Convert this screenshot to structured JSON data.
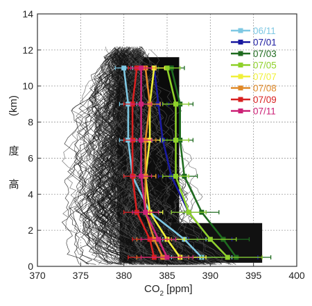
{
  "chart_data": {
    "type": "line",
    "title": "",
    "xlabel": "CO2 [ppm]",
    "xlabel_main": "CO",
    "xlabel_sub": "2",
    "xlabel_unit": "[ppm]",
    "ylabel_chars": [
      "高",
      "度"
    ],
    "ylabel_unit": "(km)",
    "xlim": [
      370,
      400
    ],
    "ylim": [
      0,
      14
    ],
    "xticks": [
      370,
      375,
      380,
      385,
      390,
      395,
      400
    ],
    "yticks": [
      0,
      2,
      4,
      6,
      8,
      10,
      12,
      14
    ],
    "grid": true,
    "legend_position": "top-right",
    "background_note": "dense black individual aircraft profiles",
    "levels_km": [
      0.5,
      1.5,
      3,
      5,
      7,
      9,
      11
    ],
    "series": [
      {
        "name": "06/11",
        "color": "#7ec8e3",
        "values": [
          389.0,
          387.0,
          383.0,
          381.0,
          380.5,
          380.5,
          380.0
        ],
        "error": [
          3.5,
          2.5,
          1.5,
          1.0,
          1.0,
          1.0,
          1.0
        ]
      },
      {
        "name": "07/01",
        "color": "#1a1aa0",
        "values": [
          392.0,
          390.0,
          387.5,
          385.5,
          384.5,
          384.0,
          383.5
        ],
        "error": [
          3.5,
          2.5,
          2.0,
          1.5,
          1.2,
          1.2,
          1.2
        ]
      },
      {
        "name": "07/03",
        "color": "#1f6b1f",
        "values": [
          393.0,
          391.5,
          389.0,
          387.0,
          386.5,
          386.5,
          385.5
        ],
        "error": [
          4.0,
          3.0,
          2.0,
          1.5,
          1.5,
          1.5,
          1.5
        ]
      },
      {
        "name": "07/05",
        "color": "#8fd12a",
        "values": [
          392.0,
          390.0,
          387.5,
          386.0,
          386.0,
          386.0,
          385.0
        ],
        "error": [
          4.0,
          3.0,
          2.0,
          1.5,
          1.5,
          1.5,
          1.5
        ]
      },
      {
        "name": "07/07",
        "color": "#f0f03a",
        "values": [
          386.5,
          385.0,
          383.0,
          382.5,
          383.0,
          383.0,
          383.5
        ],
        "error": [
          3.0,
          2.0,
          1.5,
          1.2,
          1.2,
          1.2,
          1.2
        ]
      },
      {
        "name": "07/08",
        "color": "#e08a2a",
        "values": [
          384.5,
          383.5,
          382.5,
          382.5,
          382.5,
          383.0,
          382.5
        ],
        "error": [
          3.0,
          2.0,
          1.5,
          1.2,
          1.2,
          1.2,
          1.2
        ]
      },
      {
        "name": "07/09",
        "color": "#d82020",
        "values": [
          383.5,
          383.0,
          381.5,
          381.0,
          381.0,
          381.0,
          381.5
        ],
        "error": [
          3.0,
          2.0,
          1.5,
          1.0,
          1.0,
          1.0,
          1.0
        ]
      },
      {
        "name": "07/11",
        "color": "#cc2277",
        "values": [
          385.0,
          384.0,
          382.5,
          382.0,
          382.0,
          382.0,
          382.0
        ],
        "error": [
          3.0,
          2.0,
          1.5,
          1.2,
          1.2,
          1.2,
          1.2
        ]
      }
    ]
  }
}
